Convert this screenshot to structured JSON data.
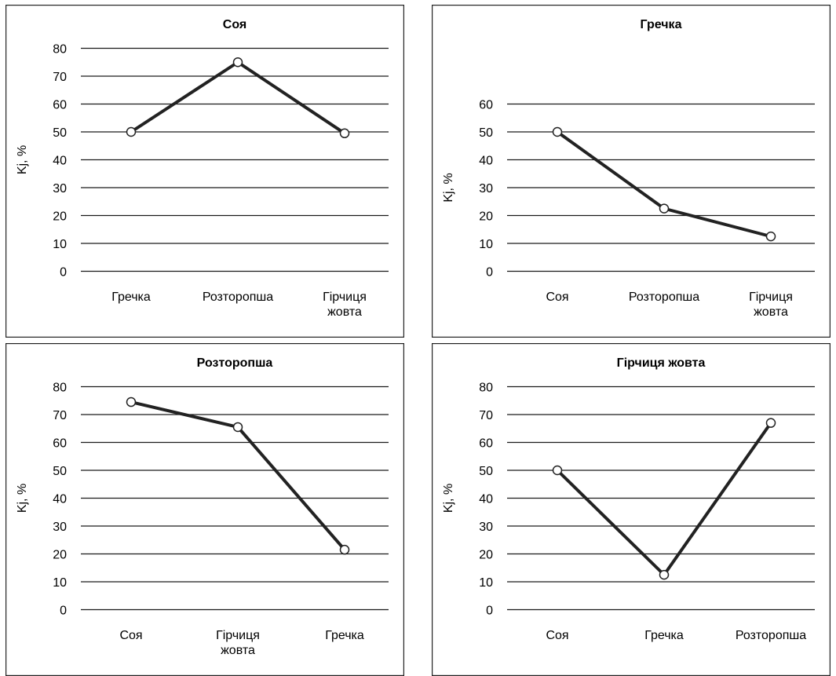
{
  "chart_data": [
    {
      "type": "line",
      "title": "Соя",
      "ylabel": "Kj, %",
      "categories": [
        "Гречка",
        "Розторопша",
        "Гірчиця\nжовта"
      ],
      "values": [
        50,
        75,
        49.5
      ],
      "ylim": [
        0,
        80
      ],
      "yticks": [
        0,
        10,
        20,
        30,
        40,
        50,
        60,
        70,
        80
      ],
      "grid": true,
      "markers": "hollow-circle"
    },
    {
      "type": "line",
      "title": "Гречка",
      "ylabel": "Kj, %",
      "categories": [
        "Соя",
        "Розторопша",
        "Гірчиця\nжовта"
      ],
      "values": [
        50,
        22.5,
        12.5
      ],
      "ylim": [
        0,
        60
      ],
      "yticks": [
        0,
        10,
        20,
        30,
        40,
        50,
        60
      ],
      "grid": true,
      "markers": "hollow-circle"
    },
    {
      "type": "line",
      "title": "Розторопша",
      "ylabel": "Kj, %",
      "categories": [
        "Соя",
        "Гірчиця\nжовта",
        "Гречка"
      ],
      "values": [
        74.5,
        65.5,
        21.5
      ],
      "ylim": [
        0,
        80
      ],
      "yticks": [
        0,
        10,
        20,
        30,
        40,
        50,
        60,
        70,
        80
      ],
      "grid": true,
      "markers": "hollow-circle"
    },
    {
      "type": "line",
      "title": "Гірчиця жовта",
      "ylabel": "Kj, %",
      "categories": [
        "Соя",
        "Гречка",
        "Розторопша"
      ],
      "values": [
        50,
        12.5,
        67
      ],
      "ylim": [
        0,
        80
      ],
      "yticks": [
        0,
        10,
        20,
        30,
        40,
        50,
        60,
        70,
        80
      ],
      "grid": true,
      "markers": "hollow-circle"
    }
  ]
}
